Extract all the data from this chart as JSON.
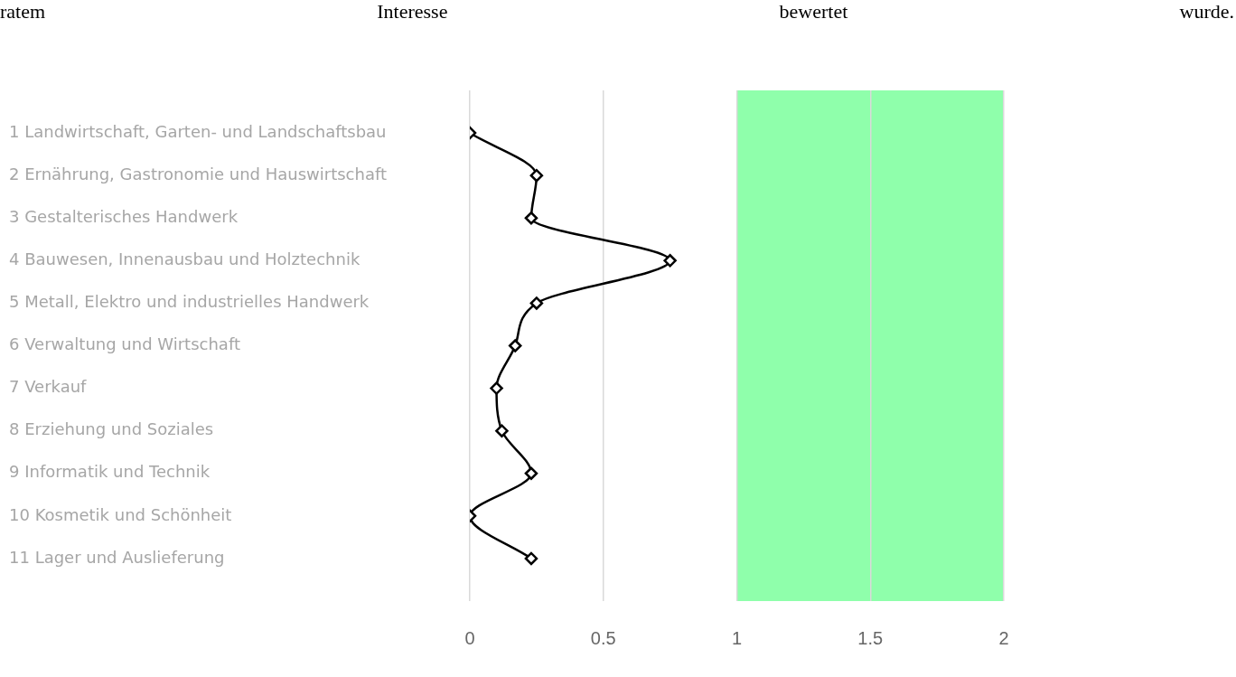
{
  "chart_data": {
    "type": "line",
    "orientation": "horizontal",
    "annotations": [
      "ratem Interesse bewertet wurde."
    ],
    "categories": [
      "1 Landwirtschaft, Garten- und Landschaftsbau",
      "2 Ernährung, Gastronomie und Hauswirtschaft",
      "3 Gestalterisches Handwerk",
      "4 Bauwesen, Innenausbau und Holztechnik",
      "5 Metall, Elektro und industrielles Handwerk",
      "6 Verwaltung und Wirtschaft",
      "7 Verkauf",
      "8 Erziehung und Soziales",
      "9 Informatik und Technik",
      "10 Kosmetik und Schönheit",
      "11 Lager und Auslieferung"
    ],
    "series": [
      {
        "color": "#000000",
        "values": [
          0,
          0.25,
          0.23,
          0.75,
          0.25,
          0.17,
          0.1,
          0.12,
          0.23,
          0,
          0.23
        ]
      }
    ],
    "xlim": [
      0,
      2
    ],
    "xticks": [
      0,
      0.5,
      1,
      1.5,
      2
    ],
    "bands": [
      {
        "axis": "x",
        "from": 1,
        "to": 2,
        "color": "#8fffab"
      }
    ],
    "grid": "x",
    "legend": false,
    "marker": "diamond",
    "line_style": "solid"
  }
}
